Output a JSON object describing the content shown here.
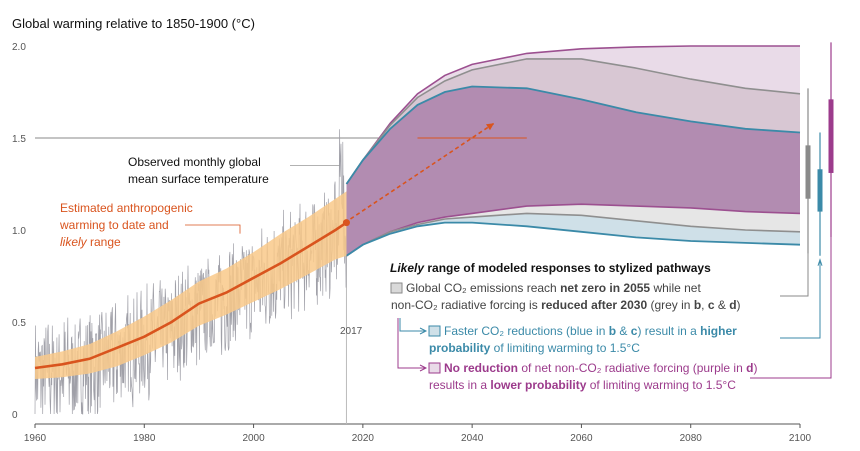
{
  "chart_data": {
    "type": "area",
    "title": "Global warming relative to 1850-1900 (°C)",
    "xlim": [
      1960,
      2100
    ],
    "ylim": [
      0,
      2.0
    ],
    "x_ticks": [
      1960,
      1980,
      2000,
      2020,
      2040,
      2060,
      2080,
      2100
    ],
    "y_ticks": [
      0,
      0.5,
      1.0,
      1.5,
      2.0
    ],
    "y_tick_labels": [
      "0",
      "0.5",
      "1.0",
      "1.5",
      "2.0"
    ],
    "reference_line": 1.5,
    "marker_year_label": "2017",
    "observed": {
      "label_line1": "Observed monthly global",
      "label_line2": "mean surface temperature",
      "color": "#a0a0a8"
    },
    "anthropogenic": {
      "label_line1": "Estimated anthropogenic",
      "label_line2": "warming to date and",
      "label_line3_italic": "likely",
      "label_line3_rest": " range",
      "x": [
        1960,
        1965,
        1970,
        1975,
        1980,
        1985,
        1990,
        1995,
        2000,
        2005,
        2010,
        2015,
        2017
      ],
      "central": [
        0.25,
        0.27,
        0.3,
        0.36,
        0.42,
        0.5,
        0.6,
        0.66,
        0.74,
        0.82,
        0.91,
        1.0,
        1.04
      ],
      "low": [
        0.19,
        0.2,
        0.22,
        0.26,
        0.32,
        0.39,
        0.48,
        0.54,
        0.61,
        0.68,
        0.76,
        0.84,
        0.86
      ],
      "high": [
        0.31,
        0.34,
        0.38,
        0.45,
        0.53,
        0.62,
        0.72,
        0.79,
        0.88,
        0.98,
        1.07,
        1.17,
        1.21
      ],
      "line_color": "#d9541e",
      "band_color": "#f9c98a"
    },
    "pathways": {
      "x": [
        2017,
        2020,
        2025,
        2030,
        2035,
        2040,
        2050,
        2060,
        2070,
        2080,
        2090,
        2100
      ],
      "purple": {
        "high": [
          1.25,
          1.38,
          1.58,
          1.74,
          1.84,
          1.9,
          1.96,
          1.985,
          1.995,
          2.0,
          2.0,
          2.0
        ],
        "low": [
          0.86,
          0.92,
          0.99,
          1.04,
          1.07,
          1.09,
          1.13,
          1.14,
          1.13,
          1.12,
          1.1,
          1.09
        ],
        "color": "#9c5090",
        "fill": "#e9dbe8"
      },
      "grey": {
        "high": [
          1.25,
          1.38,
          1.57,
          1.72,
          1.81,
          1.87,
          1.93,
          1.93,
          1.88,
          1.82,
          1.77,
          1.74
        ],
        "low": [
          0.86,
          0.92,
          0.99,
          1.03,
          1.06,
          1.07,
          1.09,
          1.08,
          1.05,
          1.02,
          1.0,
          0.99
        ],
        "color": "#8f8f8f",
        "fill": "#d8c7d3"
      },
      "blue": {
        "high": [
          1.25,
          1.38,
          1.55,
          1.68,
          1.75,
          1.78,
          1.77,
          1.71,
          1.64,
          1.59,
          1.55,
          1.53
        ],
        "low": [
          0.86,
          0.92,
          0.98,
          1.02,
          1.04,
          1.04,
          1.02,
          0.99,
          0.96,
          0.94,
          0.93,
          0.92
        ],
        "color": "#3b8aa8",
        "fill": "#b28cb1",
        "lowfill": "#cfe0e8"
      }
    },
    "right_bars": [
      {
        "name": "grey",
        "low": 1.17,
        "high": 1.46,
        "color": "#8a8a8a"
      },
      {
        "name": "blue",
        "low": 1.1,
        "high": 1.33,
        "color": "#3b8aa8"
      },
      {
        "name": "purple",
        "low": 1.31,
        "high": 1.71,
        "color": "#9c3b8c"
      }
    ],
    "right_whiskers": [
      {
        "name": "grey",
        "low": 0.87,
        "high": 1.77
      },
      {
        "name": "blue",
        "low": 0.86,
        "high": 1.53
      },
      {
        "name": "purple",
        "low": 0.96,
        "high": 2.02
      }
    ],
    "legend": {
      "heading_italic": "Likely",
      "heading_rest": " range of modeled responses to stylized pathways",
      "grey": {
        "line1_a": "Global CO₂ emissions reach ",
        "line1_b": "net zero in 2055",
        "line1_c": " while net",
        "line2_a": "non-CO₂ radiative forcing is ",
        "line2_b": "reduced after 2030",
        "line2_c": " (grey in ",
        "line2_d": "b",
        "line2_e": ", ",
        "line2_f": "c",
        "line2_g": " & ",
        "line2_h": "d",
        "line2_i": ")"
      },
      "blue": {
        "line1_a": "Faster CO₂ reductions (blue in ",
        "line1_b": "b",
        "line1_c": " & ",
        "line1_d": "c",
        "line1_e": ") result in a ",
        "line1_f": "higher",
        "line2_a": "probability",
        "line2_b": " of limiting warming to 1.5°C"
      },
      "purple": {
        "line1_a": "No reduction",
        "line1_b": " of net non-CO₂ radiative forcing (purple in ",
        "line1_c": "d",
        "line1_d": ")",
        "line2_a": "results in a ",
        "line2_b": "lower probability",
        "line2_c": " of limiting warming to 1.5°C"
      }
    }
  }
}
